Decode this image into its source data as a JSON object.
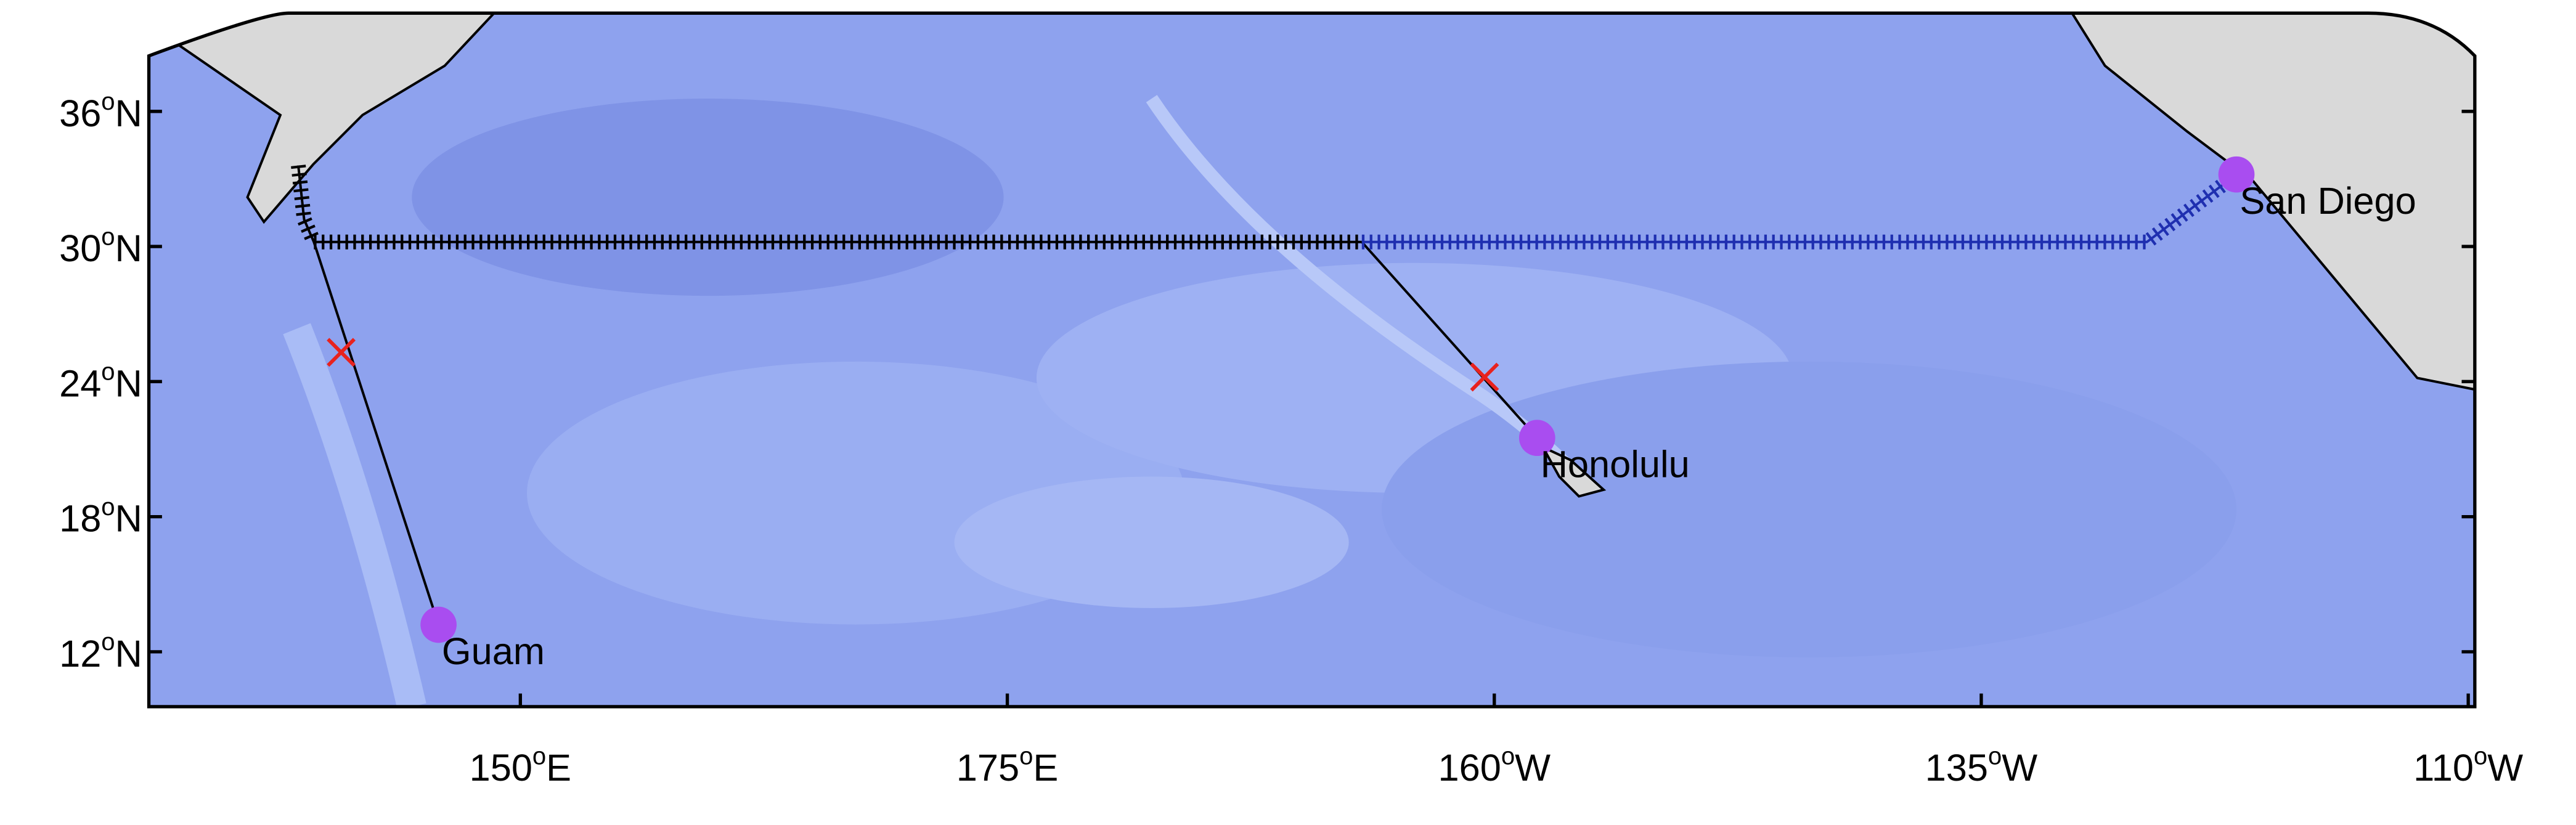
{
  "map": {
    "degree_mark": "o",
    "lat_ticks": [
      {
        "value": 36,
        "hemisphere": "N"
      },
      {
        "value": 30,
        "hemisphere": "N"
      },
      {
        "value": 24,
        "hemisphere": "N"
      },
      {
        "value": 18,
        "hemisphere": "N"
      },
      {
        "value": 12,
        "hemisphere": "N"
      }
    ],
    "lon_ticks": [
      {
        "value": 150,
        "hemisphere": "E"
      },
      {
        "value": 175,
        "hemisphere": "E"
      },
      {
        "value": 160,
        "hemisphere": "W"
      },
      {
        "value": 135,
        "hemisphere": "W"
      },
      {
        "value": 110,
        "hemisphere": "W"
      }
    ],
    "places": [
      {
        "label": "Guam",
        "lon": 145.8,
        "lat": 13.2
      },
      {
        "label": "Honolulu",
        "lon": 202.2,
        "lat": 21.5
      },
      {
        "label": "San Diego",
        "lon": 238.1,
        "lat": 33.2
      }
    ],
    "crossings": [
      {
        "lon": 140.8,
        "lat": 25.3
      },
      {
        "lon": 199.5,
        "lat": 24.2
      }
    ],
    "track_black": {
      "lon": [
        138.6,
        138.9,
        139.4,
        193.2
      ],
      "lat": [
        33.6,
        31.2,
        30.2,
        30.2
      ]
    },
    "track_blue": {
      "lon": [
        193.2,
        233.5,
        238.1
      ],
      "lat": [
        30.2,
        30.2,
        33.2
      ]
    },
    "legs": [
      {
        "lon": [
          145.8,
          139.4
        ],
        "lat": [
          13.2,
          30.2
        ]
      },
      {
        "lon": [
          202.2,
          193.2
        ],
        "lat": [
          21.5,
          30.2
        ]
      }
    ]
  }
}
